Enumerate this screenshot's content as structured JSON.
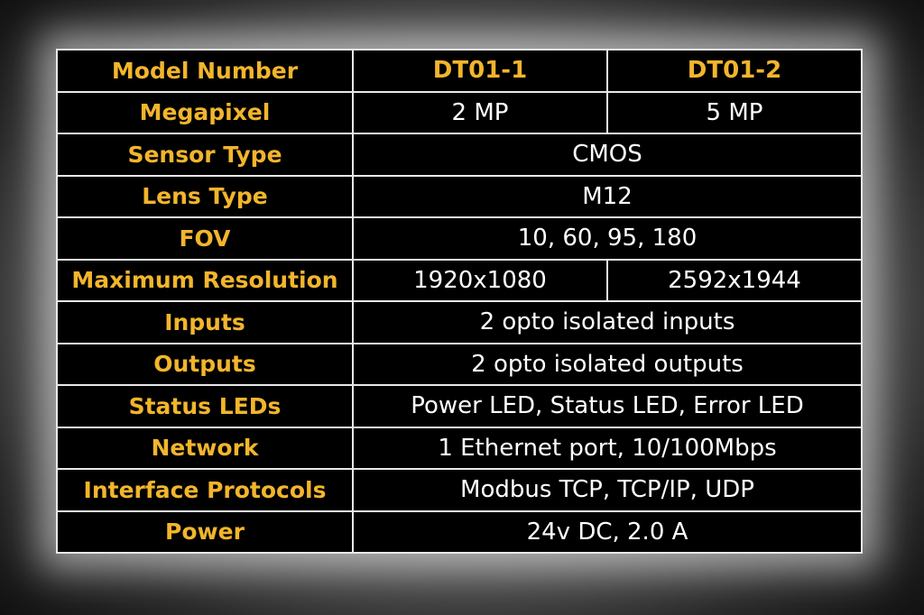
{
  "table": {
    "header": {
      "label": "Model Number",
      "values": [
        "DT01-1",
        "DT01-2"
      ]
    },
    "rows": [
      {
        "label": "Megapixel",
        "values": [
          "2 MP",
          "5 MP"
        ]
      },
      {
        "label": "Sensor Type",
        "value": "CMOS"
      },
      {
        "label": "Lens Type",
        "value": "M12"
      },
      {
        "label": "FOV",
        "value": "10, 60, 95, 180"
      },
      {
        "label": "Maximum Resolution",
        "values": [
          "1920x1080",
          "2592x1944"
        ]
      },
      {
        "label": "Inputs",
        "value": "2 opto isolated inputs"
      },
      {
        "label": "Outputs",
        "value": "2 opto isolated outputs"
      },
      {
        "label": "Status LEDs",
        "value": "Power LED, Status LED, Error LED"
      },
      {
        "label": "Network",
        "value": "1 Ethernet port, 10/100Mbps"
      },
      {
        "label": "Interface Protocols",
        "value": "Modbus TCP, TCP/IP, UDP"
      },
      {
        "label": "Power",
        "value": "24v DC, 2.0 A"
      }
    ]
  },
  "colors": {
    "label": "#f2b52c",
    "background": "#000000",
    "border": "#e8e8e8",
    "text": "#ffffff"
  }
}
